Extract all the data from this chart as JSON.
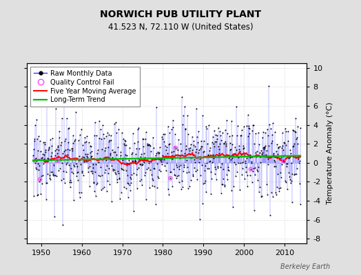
{
  "title": "NORWICH PUB UTILITY PLANT",
  "subtitle": "41.523 N, 72.110 W (United States)",
  "ylabel": "Temperature Anomaly (°C)",
  "xlabel_years": [
    1950,
    1960,
    1970,
    1980,
    1990,
    2000,
    2010
  ],
  "yticks": [
    -8,
    -6,
    -4,
    -2,
    0,
    2,
    4,
    6,
    8,
    10
  ],
  "ylim": [
    -8.5,
    10.5
  ],
  "xlim": [
    1946.5,
    2015.5
  ],
  "background_color": "#e0e0e0",
  "plot_bg_color": "#ffffff",
  "raw_line_color": "#3333ff",
  "raw_dot_color": "#000000",
  "qc_fail_color": "#ff44ff",
  "moving_avg_color": "#ff0000",
  "trend_color": "#00bb00",
  "watermark": "Berkeley Earth",
  "seed": 17,
  "start_year": 1948,
  "end_year": 2014,
  "noise_std": 2.0,
  "long_term_slope": 0.008,
  "base_anomaly": 0.2,
  "n_qc_fail": 6
}
